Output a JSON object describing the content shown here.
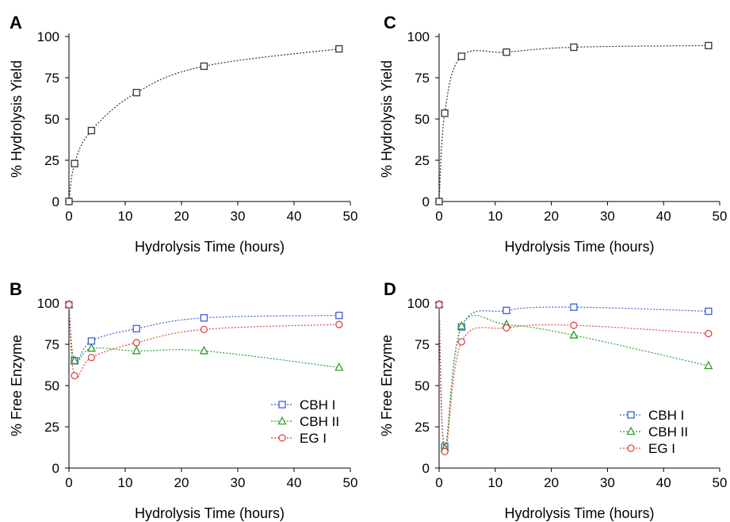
{
  "chart_data": [
    {
      "panel": "A",
      "type": "line",
      "xlabel": "Hydrolysis Time (hours)",
      "ylabel": "% Hydrolysis Yield",
      "xlim": [
        0,
        50
      ],
      "ylim": [
        0,
        100
      ],
      "xticks": [
        "0",
        "10",
        "20",
        "30",
        "40",
        "50"
      ],
      "yticks": [
        "0",
        "25",
        "50",
        "75",
        "100"
      ],
      "grid": false,
      "series": [
        {
          "color": "#333333",
          "marker": "square",
          "x": [
            0,
            1,
            4,
            12,
            24,
            48
          ],
          "y": [
            0,
            23,
            43,
            66,
            82,
            92.5
          ]
        }
      ]
    },
    {
      "panel": "C",
      "type": "line",
      "xlabel": "Hydrolysis Time (hours)",
      "ylabel": "% Hydrolysis Yield",
      "xlim": [
        0,
        50
      ],
      "ylim": [
        0,
        100
      ],
      "xticks": [
        "0",
        "10",
        "20",
        "30",
        "40",
        "50"
      ],
      "yticks": [
        "0",
        "25",
        "50",
        "75",
        "100"
      ],
      "grid": false,
      "series": [
        {
          "color": "#333333",
          "marker": "square",
          "x": [
            0,
            1,
            4,
            12,
            24,
            48
          ],
          "y": [
            0,
            53.5,
            88,
            90.5,
            93.5,
            94.5
          ]
        }
      ]
    },
    {
      "panel": "B",
      "type": "line",
      "xlabel": "Hydrolysis Time (hours)",
      "ylabel": "% Free Enzyme",
      "xlim": [
        0,
        50
      ],
      "ylim": [
        0,
        100
      ],
      "xticks": [
        "0",
        "10",
        "20",
        "30",
        "40",
        "50"
      ],
      "yticks": [
        "0",
        "25",
        "50",
        "75",
        "100"
      ],
      "grid": false,
      "legend_position": "bottom-right",
      "series": [
        {
          "name": "CBH I",
          "color": "#3a5fd8",
          "marker": "square",
          "x": [
            0,
            1,
            4,
            12,
            24,
            48
          ],
          "y": [
            99,
            65,
            77,
            84.5,
            91,
            92.5
          ]
        },
        {
          "name": "CBH II",
          "color": "#2e9e2e",
          "marker": "triangle",
          "x": [
            0,
            1,
            4,
            12,
            24,
            48
          ],
          "y": [
            99,
            65,
            72.5,
            71,
            71,
            61
          ]
        },
        {
          "name": "EG I",
          "color": "#e04545",
          "marker": "circle",
          "x": [
            0,
            1,
            4,
            12,
            24,
            48
          ],
          "y": [
            99,
            56,
            67,
            76,
            84,
            87
          ]
        }
      ]
    },
    {
      "panel": "D",
      "type": "line",
      "xlabel": "Hydrolysis Time (hours)",
      "ylabel": "% Free Enzyme",
      "xlim": [
        0,
        50
      ],
      "ylim": [
        0,
        100
      ],
      "xticks": [
        "0",
        "10",
        "20",
        "30",
        "40",
        "50"
      ],
      "yticks": [
        "0",
        "25",
        "50",
        "75",
        "100"
      ],
      "grid": false,
      "legend_position": "bottom-right",
      "series": [
        {
          "name": "CBH I",
          "color": "#3a5fd8",
          "marker": "square",
          "x": [
            0,
            1,
            4,
            12,
            24,
            48
          ],
          "y": [
            99,
            13,
            85.5,
            95.5,
            97.5,
            95
          ]
        },
        {
          "name": "CBH II",
          "color": "#2e9e2e",
          "marker": "triangle",
          "x": [
            0,
            1,
            4,
            12,
            24,
            48
          ],
          "y": [
            99,
            12,
            86,
            87,
            80.5,
            62
          ]
        },
        {
          "name": "EG I",
          "color": "#e04545",
          "marker": "circle",
          "x": [
            0,
            1,
            4,
            12,
            24,
            48
          ],
          "y": [
            99,
            10,
            76.5,
            85,
            86.5,
            81.5
          ]
        }
      ]
    }
  ]
}
